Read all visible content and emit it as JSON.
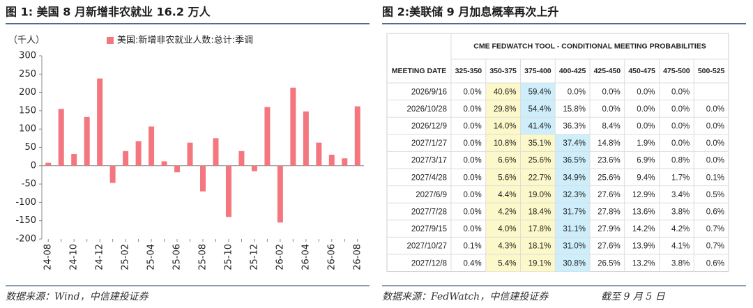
{
  "figure1": {
    "title": "图 1: 美国 8 月新增非农就业 16.2 万人",
    "source": "数据来源：Wind，中信建投证券"
  },
  "chart_data": {
    "type": "bar",
    "y_label": "（千人）",
    "categories": [
      "24-08",
      null,
      "24-10",
      null,
      "24-12",
      null,
      "25-02",
      null,
      "25-04",
      null,
      "25-06",
      null,
      "25-08",
      null,
      "25-10",
      null,
      "25-12",
      null,
      "26-02",
      null,
      "26-04",
      null,
      "26-06",
      null,
      "26-08"
    ],
    "series": [
      {
        "name": "美国:新增非农就业人数:总计:季调",
        "color": "#f4777f",
        "values": [
          8,
          155,
          32,
          133,
          238,
          -47,
          40,
          67,
          107,
          12,
          -18,
          63,
          -70,
          75,
          -140,
          40,
          -15,
          160,
          -155,
          213,
          148,
          63,
          30,
          20,
          162
        ]
      }
    ],
    "ylim": [
      -200,
      300
    ],
    "yticks": [
      -200,
      -150,
      -100,
      -50,
      0,
      50,
      100,
      150,
      200,
      250,
      300
    ],
    "grid": false
  },
  "figure2": {
    "title": "图 2:美联储 9 月加息概率再次上升",
    "source": "数据来源：FedWatch，中信建投证券",
    "as_of": "截至 9 月 5 日",
    "table": {
      "title": "CME FEDWATCH TOOL - CONDITIONAL MEETING PROBABILITIES",
      "header": [
        "MEETING DATE",
        "325-350",
        "350-375",
        "375-400",
        "400-425",
        "425-450",
        "450-475",
        "475-500",
        "500-525"
      ],
      "rows": [
        [
          "2026/9/16",
          "0.0%",
          "40.6%",
          "59.4%",
          "0.0%",
          "0.0%",
          "0.0%",
          "0.0%",
          null
        ],
        [
          "2026/10/28",
          "0.0%",
          "29.8%",
          "54.4%",
          "15.8%",
          "0.0%",
          "0.0%",
          "0.0%",
          "0.0%"
        ],
        [
          "2026/12/9",
          "0.0%",
          "14.0%",
          "41.4%",
          "36.3%",
          "8.4%",
          "0.0%",
          "0.0%",
          "0.0%"
        ],
        [
          "2027/1/27",
          "0.0%",
          "10.8%",
          "35.1%",
          "37.4%",
          "14.8%",
          "1.9%",
          "0.0%",
          "0.0%"
        ],
        [
          "2027/3/17",
          "0.0%",
          "6.6%",
          "25.6%",
          "36.5%",
          "23.6%",
          "6.9%",
          "0.8%",
          "0.0%"
        ],
        [
          "2027/4/28",
          "0.0%",
          "5.6%",
          "22.7%",
          "34.9%",
          "25.6%",
          "9.4%",
          "1.7%",
          "0.1%"
        ],
        [
          "2027/6/9",
          "0.0%",
          "4.4%",
          "19.0%",
          "32.3%",
          "27.6%",
          "12.9%",
          "3.4%",
          "0.5%"
        ],
        [
          "2027/7/28",
          "0.0%",
          "4.2%",
          "18.4%",
          "31.7%",
          "27.8%",
          "13.6%",
          "3.8%",
          "0.6%"
        ],
        [
          "2027/9/15",
          "0.0%",
          "4.0%",
          "17.8%",
          "31.1%",
          "27.9%",
          "14.2%",
          "4.2%",
          "0.7%"
        ],
        [
          "2027/10/27",
          "0.1%",
          "4.3%",
          "18.1%",
          "31.0%",
          "27.6%",
          "13.9%",
          "4.1%",
          "0.7%"
        ],
        [
          "2027/12/8",
          "0.4%",
          "5.4%",
          "19.1%",
          "30.8%",
          "26.5%",
          "13.2%",
          "3.8%",
          "0.6%"
        ]
      ]
    }
  }
}
